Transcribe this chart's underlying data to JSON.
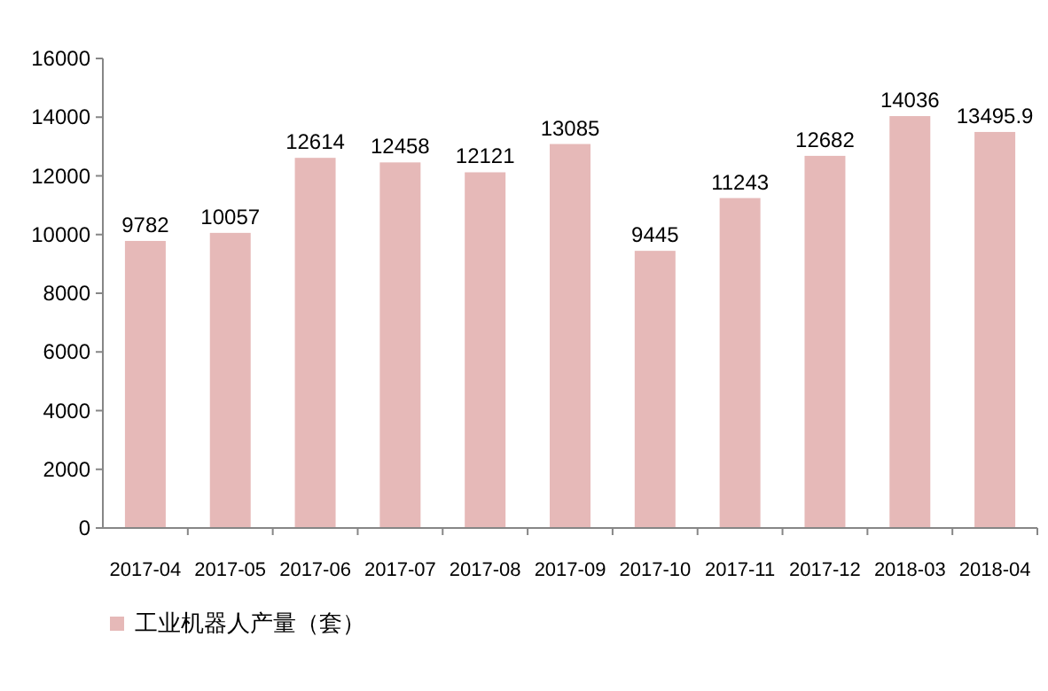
{
  "chart_data": {
    "type": "bar",
    "categories": [
      "2017-04",
      "2017-05",
      "2017-06",
      "2017-07",
      "2017-08",
      "2017-09",
      "2017-10",
      "2017-11",
      "2017-12",
      "2018-03",
      "2018-04"
    ],
    "series": [
      {
        "name": "工业机器人产量（套）",
        "color": "#e6b9b8",
        "values": [
          9782,
          10057,
          12614,
          12458,
          12121,
          13085,
          9445,
          11243,
          12682,
          14036,
          13495.9
        ]
      }
    ],
    "ylim": [
      0,
      16000
    ],
    "yticks": [
      0,
      2000,
      4000,
      6000,
      8000,
      10000,
      12000,
      14000,
      16000
    ],
    "data_labels": true,
    "legend": "bottom left",
    "grid": false
  }
}
